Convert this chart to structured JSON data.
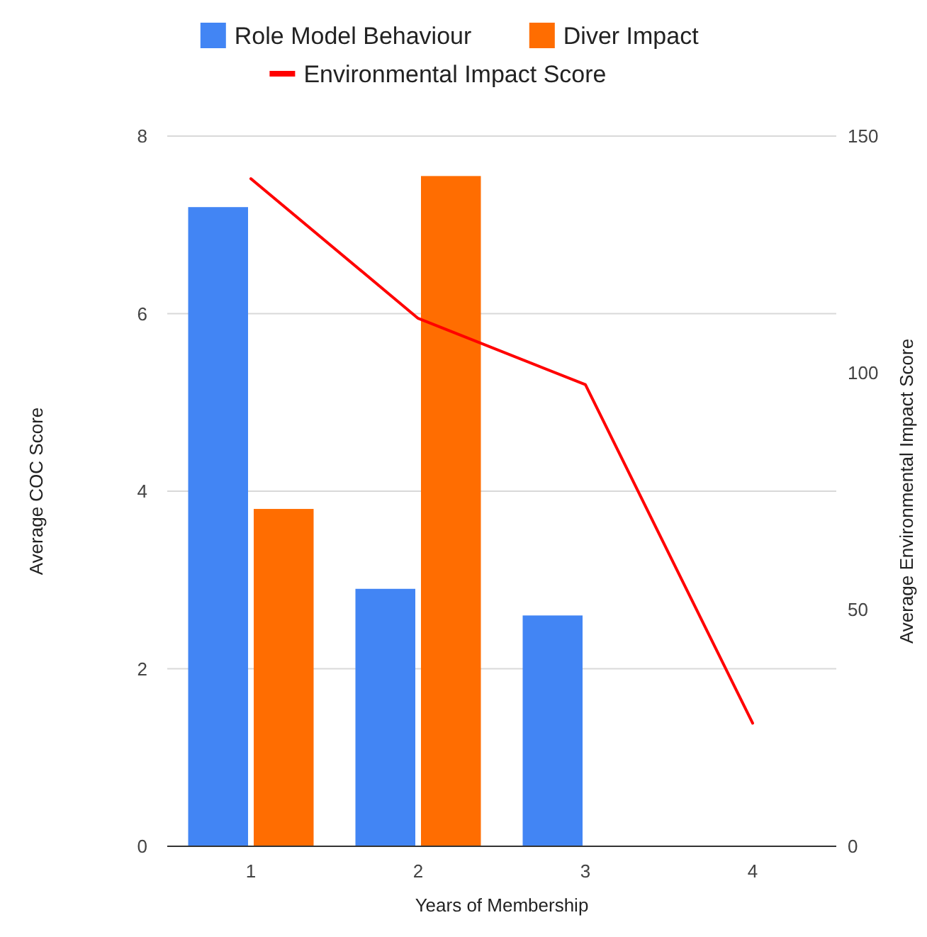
{
  "chart_data": {
    "type": "bar",
    "xlabel": "Years of Membership",
    "ylabel": "Average COC Score",
    "y2label": "Average Environmental Impact Score",
    "categories": [
      "1",
      "2",
      "3",
      "4"
    ],
    "series": [
      {
        "name": "Role Model Behaviour",
        "color": "#4285f4",
        "values": [
          7.2,
          2.9,
          2.6,
          null
        ]
      },
      {
        "name": "Diver Impact",
        "color": "#ff6d01",
        "values": [
          3.8,
          7.55,
          null,
          null
        ]
      },
      {
        "name": "Environmental Impact Score",
        "type": "line",
        "axis": "y2",
        "color": "#ff0000",
        "values": [
          141,
          111.5,
          97.5,
          26
        ]
      }
    ],
    "ylim": [
      0,
      8
    ],
    "yticks": [
      0,
      2,
      4,
      6,
      8
    ],
    "y2lim": [
      0,
      150
    ],
    "y2ticks": [
      0,
      50,
      100,
      150
    ],
    "grid": "y",
    "legend": "top"
  }
}
